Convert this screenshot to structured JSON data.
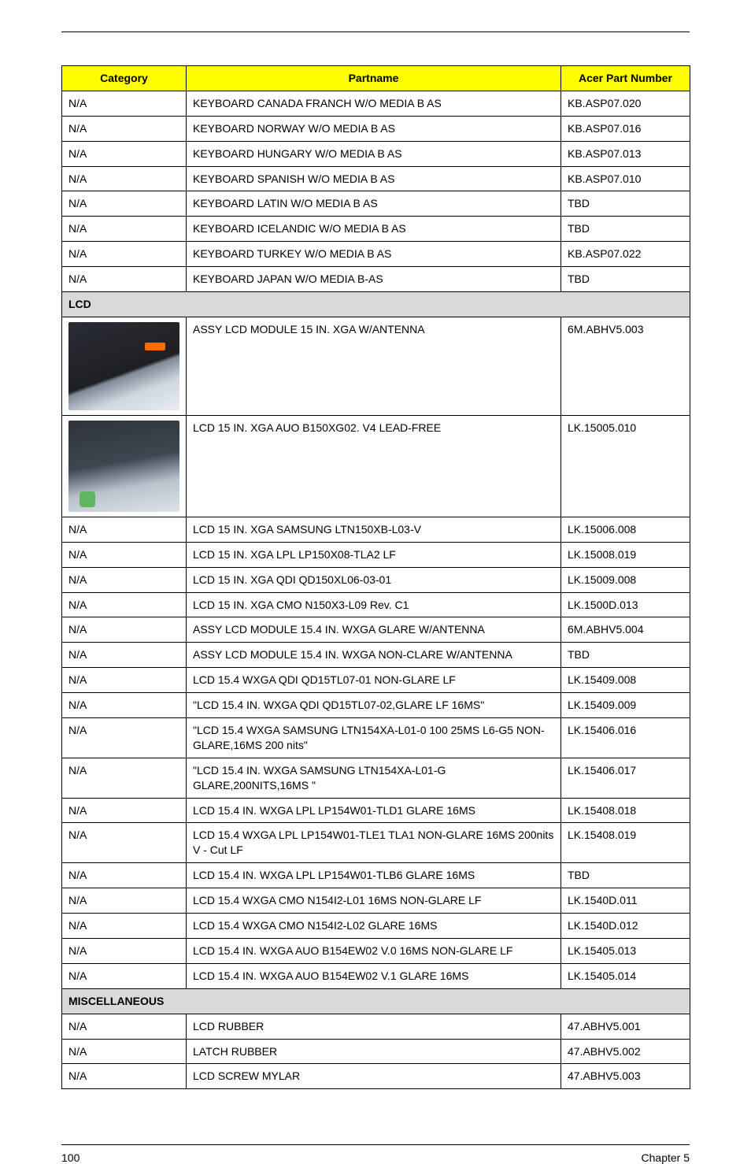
{
  "table": {
    "headers": {
      "category": "Category",
      "partname": "Partname",
      "acer_part": "Acer Part Number"
    },
    "colors": {
      "header_bg": "#ffff00",
      "section_bg": "#d9d9d9",
      "border": "#000000",
      "text": "#000000"
    },
    "rows": [
      {
        "type": "data",
        "category": "N/A",
        "partname": "KEYBOARD CANADA FRANCH W/O MEDIA B AS",
        "acer_part": "KB.ASP07.020"
      },
      {
        "type": "data",
        "category": "N/A",
        "partname": "KEYBOARD NORWAY W/O MEDIA B AS",
        "acer_part": "KB.ASP07.016"
      },
      {
        "type": "data",
        "category": "N/A",
        "partname": "KEYBOARD HUNGARY W/O MEDIA B AS",
        "acer_part": "KB.ASP07.013"
      },
      {
        "type": "data",
        "category": "N/A",
        "partname": "KEYBOARD SPANISH W/O MEDIA B AS",
        "acer_part": "KB.ASP07.010"
      },
      {
        "type": "data",
        "category": "N/A",
        "partname": "KEYBOARD LATIN W/O MEDIA B AS",
        "acer_part": "TBD"
      },
      {
        "type": "data",
        "category": "N/A",
        "partname": "KEYBOARD ICELANDIC W/O MEDIA B AS",
        "acer_part": "TBD"
      },
      {
        "type": "data",
        "category": "N/A",
        "partname": "KEYBOARD TURKEY W/O MEDIA B AS",
        "acer_part": "KB.ASP07.022"
      },
      {
        "type": "data",
        "category": "N/A",
        "partname": "KEYBOARD JAPAN W/O MEDIA B-AS",
        "acer_part": "TBD"
      },
      {
        "type": "section",
        "label": "LCD"
      },
      {
        "type": "image1",
        "partname": "ASSY LCD MODULE 15 IN. XGA W/ANTENNA",
        "acer_part": "6M.ABHV5.003"
      },
      {
        "type": "image2",
        "partname": "LCD 15 IN. XGA AUO B150XG02. V4 LEAD-FREE",
        "acer_part": "LK.15005.010"
      },
      {
        "type": "data",
        "category": "N/A",
        "partname": "LCD 15 IN. XGA SAMSUNG LTN150XB-L03-V",
        "acer_part": "LK.15006.008"
      },
      {
        "type": "data",
        "category": "N/A",
        "partname": "LCD 15 IN. XGA LPL LP150X08-TLA2 LF",
        "acer_part": "LK.15008.019"
      },
      {
        "type": "data",
        "category": "N/A",
        "partname": "LCD 15 IN. XGA QDI QD150XL06-03-01",
        "acer_part": "LK.15009.008"
      },
      {
        "type": "data",
        "category": "N/A",
        "partname": "LCD 15 IN. XGA CMO N150X3-L09 Rev. C1",
        "acer_part": "LK.1500D.013"
      },
      {
        "type": "data",
        "category": "N/A",
        "partname": "ASSY LCD MODULE 15.4 IN. WXGA GLARE  W/ANTENNA",
        "acer_part": "6M.ABHV5.004"
      },
      {
        "type": "data",
        "category": "N/A",
        "partname": "ASSY LCD MODULE 15.4 IN. WXGA NON-CLARE W/ANTENNA",
        "acer_part": "TBD"
      },
      {
        "type": "data",
        "category": "N/A",
        "partname": "LCD 15.4 WXGA QDI  QD15TL07-01 NON-GLARE LF",
        "acer_part": "LK.15409.008"
      },
      {
        "type": "data",
        "category": "N/A",
        "partname": "\"LCD 15.4 IN. WXGA QDI  QD15TL07-02,GLARE LF 16MS\"",
        "acer_part": "LK.15409.009"
      },
      {
        "type": "data",
        "category": "N/A",
        "partname": "\"LCD 15.4 WXGA SAMSUNG LTN154XA-L01-0 100 25MS L6-G5 NON-GLARE,16MS 200 nits\"",
        "acer_part": "LK.15406.016"
      },
      {
        "type": "data",
        "category": "N/A",
        "partname": "\"LCD 15.4 IN. WXGA SAMSUNG LTN154XA-L01-G GLARE,200NITS,16MS \"",
        "acer_part": "LK.15406.017"
      },
      {
        "type": "data",
        "category": "N/A",
        "partname": "LCD 15.4 IN. WXGA LPL LP154W01-TLD1 GLARE 16MS",
        "acer_part": "LK.15408.018"
      },
      {
        "type": "data",
        "category": "N/A",
        "partname": "LCD 15.4 WXGA LPL LP154W01-TLE1 TLA1  NON-GLARE 16MS 200nits V - Cut LF",
        "acer_part": "LK.15408.019"
      },
      {
        "type": "data",
        "category": "N/A",
        "partname": "LCD 15.4 IN. WXGA LPL LP154W01-TLB6 GLARE 16MS",
        "acer_part": "TBD"
      },
      {
        "type": "data",
        "category": "N/A",
        "partname": "LCD 15.4 WXGA CMO N154I2-L01 16MS NON-GLARE LF",
        "acer_part": "LK.1540D.011"
      },
      {
        "type": "data",
        "category": "N/A",
        "partname": "LCD 15.4 WXGA CMO N154I2-L02 GLARE 16MS",
        "acer_part": "LK.1540D.012"
      },
      {
        "type": "data",
        "category": "N/A",
        "partname": "LCD 15.4 IN.  WXGA AUO B154EW02 V.0 16MS NON-GLARE LF",
        "acer_part": "LK.15405.013"
      },
      {
        "type": "data",
        "category": "N/A",
        "partname": "LCD 15.4 IN. WXGA AUO B154EW02 V.1 GLARE 16MS",
        "acer_part": "LK.15405.014"
      },
      {
        "type": "section",
        "label": "MISCELLANEOUS"
      },
      {
        "type": "data",
        "category": "N/A",
        "partname": "LCD RUBBER",
        "acer_part": "47.ABHV5.001"
      },
      {
        "type": "data",
        "category": "N/A",
        "partname": "LATCH RUBBER",
        "acer_part": "47.ABHV5.002"
      },
      {
        "type": "data",
        "category": "N/A",
        "partname": "LCD SCREW MYLAR",
        "acer_part": "47.ABHV5.003"
      }
    ]
  },
  "footer": {
    "page_number": "100",
    "chapter": "Chapter 5"
  }
}
